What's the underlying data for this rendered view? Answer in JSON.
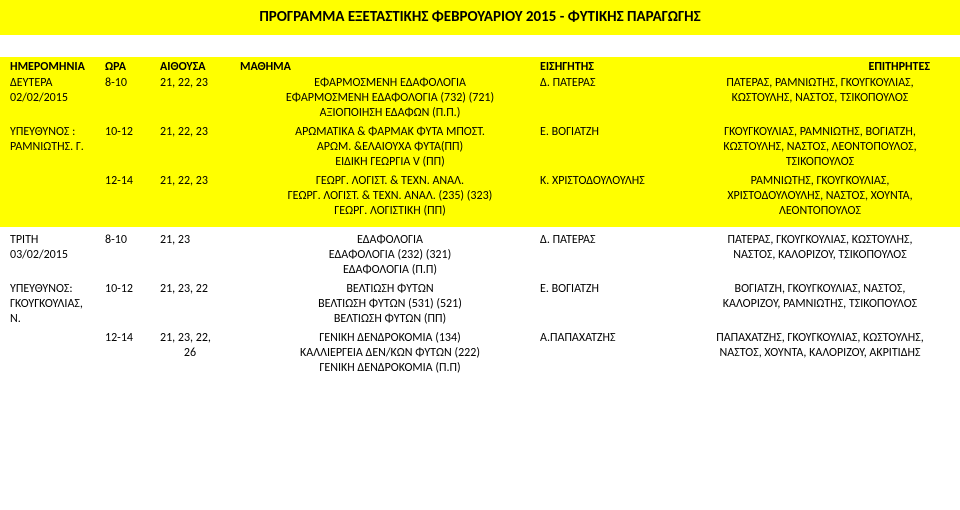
{
  "title": "ΠΡΟΓΡΑΜΜΑ ΕΞΕΤΑΣΤΙΚΗΣ ΦΕΒΡΟΥΑΡΙΟΥ 2015 - ΦΥΤΙΚΗΣ ΠΑΡΑΓΩΓΗΣ",
  "headers": {
    "c1": "ΗΜΕΡΟΜΗΝΙΑ",
    "c2": "ΩΡΑ",
    "c3": "ΑΙΘΟΥΣΑ",
    "c4": "ΜΑΘΗΜΑ",
    "c5": "ΕΙΣΗΓΗΤΗΣ",
    "c6": "ΕΠΙΤΗΡΗΤΕΣ"
  },
  "block1": {
    "row1": {
      "day": "ΔΕΥΤΕΡΑ",
      "time": "8-10",
      "room": "21, 22, 23",
      "course1": "ΕΦΑΡΜΟΣΜΕΝΗ ΕΔΑΦΟΛΟΓΙΑ",
      "course2": "ΕΦΑΡΜΟΣΜΕΝΗ ΕΔΑΦΟΛΟΓΙΑ (732) (721)",
      "course3": "ΑΞΙΟΠΟΙΗΣΗ ΕΔΑΦΩΝ (Π.Π.)",
      "date": "02/02/2015",
      "lecturer": "Δ. ΠΑΤΕΡΑΣ",
      "sup1": "ΠΑΤΕΡΑΣ, ΡΑΜΝΙΩΤΗΣ, ΓΚΟΥΓΚΟΥΛΙΑΣ,",
      "sup2": "ΚΩΣΤΟΥΛΗΣ, ΝΑΣΤΟΣ, ΤΣΙΚΟΠΟΥΛΟΣ"
    },
    "row2": {
      "resp1": "ΥΠΕΥΘΥΝΟΣ :",
      "resp2": "ΡΑΜΝΙΩΤΗΣ. Γ.",
      "time": "10-12",
      "room": "21, 22, 23",
      "course1": "ΑΡΩΜΑΤΙΚΑ & ΦΑΡΜΑΚ ΦΥΤΑ  ΜΠΟΣΤ.",
      "course2": "ΑΡΩΜ. &ΕΛΑΙΟΥΧΑ ΦΥΤΑ(ΠΠ)",
      "course3": "ΕΙΔΙΚΗ ΓΕΩΡΓΙΑ V (ΠΠ)",
      "lecturer": "Ε. ΒΟΓΙΑΤΖΗ",
      "sup1": "ΓΚΟΥΓΚΟΥΛΙΑΣ, ΡΑΜΝΙΩΤΗΣ, ΒΟΓΙΑΤΖΗ,",
      "sup2": "ΚΩΣΤΟΥΛΗΣ, ΝΑΣΤΟΣ, ΛΕΟΝΤΟΠΟΥΛΟΣ,",
      "sup3": "ΤΣΙΚΟΠΟΥΛΟΣ"
    },
    "row3": {
      "time": "12-14",
      "room": "21, 22, 23",
      "course1": "ΓΕΩΡΓ. ΛΟΓΙΣΤ. & ΤΕΧΝ. ΑΝΑΛ.",
      "course2": "ΓΕΩΡΓ. ΛΟΓΙΣΤ. & ΤΕΧΝ. ΑΝΑΛ. (235) (323)",
      "course3": "ΓΕΩΡΓ. ΛΟΓΙΣΤΙΚΗ (ΠΠ)",
      "lecturer": "Κ. ΧΡΙΣΤΟΔΟΥΛΟΥΛΗΣ",
      "sup1": "ΡΑΜΝΙΩΤΗΣ, ΓΚΟΥΓΚΟΥΛΙΑΣ,",
      "sup2": "ΧΡΙΣΤΟΔΟΥΛΟΥΛΗΣ, ΝΑΣΤΟΣ, ΧΟΥΝΤΑ,",
      "sup3": "ΛΕΟΝΤΟΠΟΥΛΟΣ"
    }
  },
  "block2": {
    "row1": {
      "day": "ΤΡΙΤΗ",
      "date": "03/02/2015",
      "time": "8-10",
      "room": "21, 23",
      "course1": "ΕΔΑΦΟΛΟΓΙΑ",
      "course2": "ΕΔΑΦΟΛΟΓΙΑ (232) (321)",
      "course3": "ΕΔΑΦΟΛΟΓΙΑ (Π.Π)",
      "lecturer": "Δ. ΠΑΤΕΡΑΣ",
      "sup1": "ΠΑΤΕΡΑΣ, ΓΚΟΥΓΚΟΥΛΙΑΣ, ΚΩΣΤΟΥΛΗΣ,",
      "sup2": "ΝΑΣΤΟΣ, ΚΑΛΟΡΙΖΟΥ, ΤΣΙΚΟΠΟΥΛΟΣ"
    },
    "row2": {
      "resp1": "ΥΠΕΥΘΥΝΟΣ:",
      "resp2": "ΓΚΟΥΓΚΟΥΛΙΑΣ,",
      "resp3": "Ν.",
      "time": "10-12",
      "room": "21, 23, 22",
      "course1": "ΒΕΛΤΙΩΣΗ ΦΥΤΩΝ",
      "course2": "ΒΕΛΤΙΩΣΗ ΦΥΤΩΝ (531) (521)",
      "course3": "ΒΕΛΤΙΩΣΗ ΦΥΤΩΝ  (ΠΠ)",
      "lecturer": "Ε. ΒΟΓΙΑΤΖΗ",
      "sup1": "ΒΟΓΙΑΤΖΗ,  ΓΚΟΥΓΚΟΥΛΙΑΣ, ΝΑΣΤΟΣ,",
      "sup2": "ΚΑΛΟΡΙΖΟΥ, ΡΑΜΝΙΩΤΗΣ, ΤΣΙΚΟΠΟΥΛΟΣ"
    },
    "row3": {
      "time": "12-14",
      "room1": "21, 23, 22,",
      "room2": "26",
      "course1": "ΓΕΝΙΚΗ ΔΕΝΔΡΟΚΟΜΙΑ (134)",
      "course2": "ΚΑΛΛΙΕΡΓΕΙΑ ΔΕΝ/ΚΩΝ ΦΥΤΩΝ (222)",
      "course3": "ΓΕΝΙΚΗ ΔΕΝΔΡΟΚΟΜΙΑ (Π.Π)",
      "lecturer": "Α.ΠΑΠΑΧΑΤΖΗΣ",
      "sup1": "ΠΑΠΑΧΑΤΖΗΣ, ΓΚΟΥΓΚΟΥΛΙΑΣ, ΚΩΣΤΟΥΛΗΣ,",
      "sup2": "ΝΑΣΤΟΣ,  ΧΟΥΝΤΑ, ΚΑΛΟΡΙΖΟΥ, ΑΚΡΙΤΙΔΗΣ"
    }
  }
}
